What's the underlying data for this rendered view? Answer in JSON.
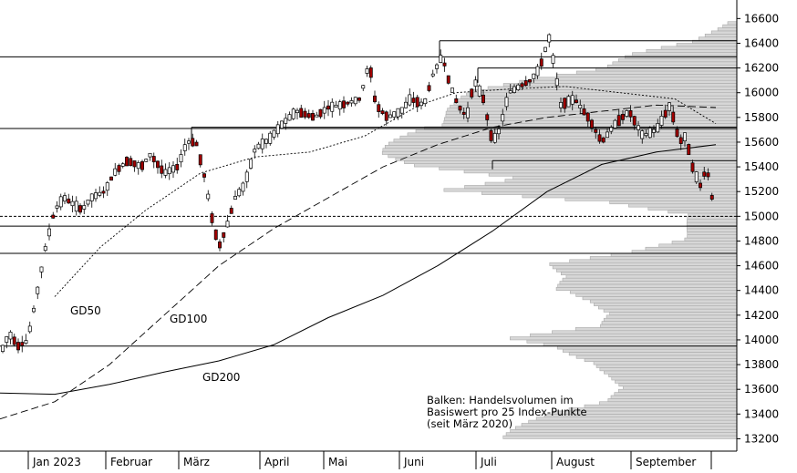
{
  "chart_data": {
    "type": "candlestick",
    "x_labels": [
      "Jan 2023",
      "Februar",
      "März",
      "April",
      "Mai",
      "Juni",
      "Juli",
      "August",
      "September"
    ],
    "y_ticks": [
      13200,
      13400,
      13600,
      13800,
      14000,
      14200,
      14400,
      14600,
      14800,
      15000,
      15200,
      15400,
      15600,
      15800,
      16000,
      16200,
      16400,
      16600
    ],
    "ylim": [
      13100,
      16750
    ],
    "annotation_lines": [
      "Balken: Handelsvolumen im",
      "Basiswert pro 25 Index-Punkte",
      "(seit März 2020)"
    ],
    "moving_average_labels": {
      "gd50": "GD50",
      "gd100": "GD100",
      "gd200": "GD200"
    },
    "horizontal_levels": [
      16420,
      16290,
      16200,
      15720,
      15710,
      15450,
      15000,
      14920,
      14700,
      13950
    ],
    "price_waypoints": [
      [
        0,
        13880
      ],
      [
        10,
        14050
      ],
      [
        20,
        13950
      ],
      [
        30,
        13990
      ],
      [
        40,
        14350
      ],
      [
        50,
        14750
      ],
      [
        60,
        15050
      ],
      [
        70,
        15150
      ],
      [
        80,
        15100
      ],
      [
        90,
        15050
      ],
      [
        100,
        15150
      ],
      [
        115,
        15200
      ],
      [
        125,
        15350
      ],
      [
        140,
        15450
      ],
      [
        155,
        15400
      ],
      [
        165,
        15500
      ],
      [
        180,
        15350
      ],
      [
        195,
        15400
      ],
      [
        205,
        15600
      ],
      [
        215,
        15600
      ],
      [
        225,
        15300
      ],
      [
        232,
        15000
      ],
      [
        240,
        14750
      ],
      [
        248,
        14900
      ],
      [
        258,
        15150
      ],
      [
        268,
        15250
      ],
      [
        280,
        15550
      ],
      [
        295,
        15620
      ],
      [
        310,
        15750
      ],
      [
        325,
        15850
      ],
      [
        345,
        15800
      ],
      [
        360,
        15880
      ],
      [
        375,
        15900
      ],
      [
        395,
        15950
      ],
      [
        405,
        16250
      ],
      [
        412,
        15900
      ],
      [
        425,
        15800
      ],
      [
        440,
        15850
      ],
      [
        450,
        15950
      ],
      [
        465,
        15900
      ],
      [
        475,
        16150
      ],
      [
        485,
        16300
      ],
      [
        492,
        16100
      ],
      [
        502,
        15900
      ],
      [
        512,
        15800
      ],
      [
        520,
        16100
      ],
      [
        530,
        15950
      ],
      [
        540,
        15600
      ],
      [
        548,
        15700
      ],
      [
        558,
        16000
      ],
      [
        570,
        16050
      ],
      [
        582,
        16100
      ],
      [
        592,
        16200
      ],
      [
        602,
        16450
      ],
      [
        607,
        16250
      ],
      [
        615,
        15900
      ],
      [
        630,
        15950
      ],
      [
        645,
        15800
      ],
      [
        660,
        15600
      ],
      [
        675,
        15750
      ],
      [
        690,
        15850
      ],
      [
        705,
        15650
      ],
      [
        720,
        15700
      ],
      [
        735,
        15900
      ],
      [
        745,
        15600
      ],
      [
        752,
        15650
      ],
      [
        760,
        15380
      ],
      [
        768,
        15250
      ],
      [
        775,
        15400
      ],
      [
        782,
        15100
      ]
    ],
    "gd50_path": [
      [
        60,
        14350
      ],
      [
        110,
        14750
      ],
      [
        160,
        15050
      ],
      [
        220,
        15350
      ],
      [
        280,
        15480
      ],
      [
        340,
        15520
      ],
      [
        400,
        15650
      ],
      [
        460,
        15900
      ],
      [
        500,
        16000
      ],
      [
        560,
        16030
      ],
      [
        620,
        16050
      ],
      [
        680,
        16000
      ],
      [
        740,
        15950
      ],
      [
        785,
        15750
      ]
    ],
    "gd100_path": [
      [
        0,
        13360
      ],
      [
        60,
        13500
      ],
      [
        120,
        13800
      ],
      [
        180,
        14200
      ],
      [
        240,
        14600
      ],
      [
        300,
        14900
      ],
      [
        360,
        15150
      ],
      [
        420,
        15400
      ],
      [
        480,
        15580
      ],
      [
        540,
        15720
      ],
      [
        600,
        15800
      ],
      [
        660,
        15850
      ],
      [
        720,
        15900
      ],
      [
        785,
        15880
      ]
    ],
    "gd200_path": [
      [
        0,
        13570
      ],
      [
        60,
        13560
      ],
      [
        120,
        13640
      ],
      [
        180,
        13740
      ],
      [
        240,
        13830
      ],
      [
        300,
        13960
      ],
      [
        360,
        14180
      ],
      [
        420,
        14360
      ],
      [
        480,
        14600
      ],
      [
        540,
        14880
      ],
      [
        600,
        15200
      ],
      [
        660,
        15420
      ],
      [
        720,
        15520
      ],
      [
        785,
        15580
      ]
    ],
    "volume_profile": [
      [
        13200,
        240
      ],
      [
        13300,
        220
      ],
      [
        13400,
        200
      ],
      [
        13500,
        150
      ],
      [
        13600,
        120
      ],
      [
        13700,
        130
      ],
      [
        13800,
        150
      ],
      [
        13900,
        200
      ],
      [
        14000,
        250
      ],
      [
        14100,
        140
      ],
      [
        14200,
        130
      ],
      [
        14300,
        160
      ],
      [
        14400,
        210
      ],
      [
        14500,
        180
      ],
      [
        14600,
        190
      ],
      [
        14700,
        110
      ],
      [
        14800,
        60
      ],
      [
        14900,
        55
      ],
      [
        15000,
        50
      ],
      [
        15100,
        130
      ],
      [
        15200,
        320
      ],
      [
        15300,
        260
      ],
      [
        15400,
        340
      ],
      [
        15500,
        360
      ],
      [
        15600,
        360
      ],
      [
        15700,
        360
      ],
      [
        15800,
        320
      ],
      [
        15900,
        290
      ],
      [
        16000,
        270
      ],
      [
        16100,
        220
      ],
      [
        16200,
        150
      ],
      [
        16300,
        110
      ],
      [
        16400,
        45
      ],
      [
        16500,
        20
      ],
      [
        16550,
        10
      ]
    ],
    "grid": false
  },
  "colors": {
    "up": "#ffffff",
    "down": "#a00000",
    "wick": "#000000",
    "volume": "#d7d7d7",
    "volume_stroke": "#a9a9a9",
    "line": "#000000",
    "tick_text": "#000000"
  }
}
